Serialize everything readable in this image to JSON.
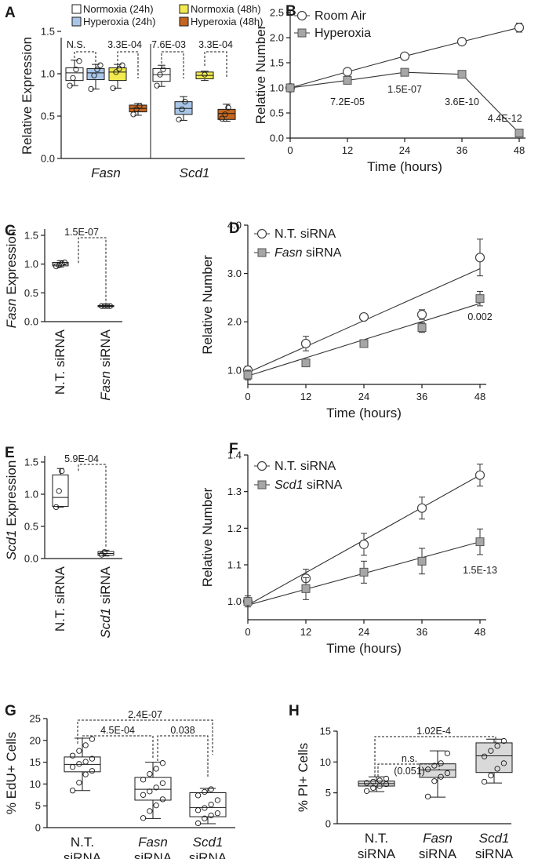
{
  "panels": [
    {
      "id": "A",
      "label": "A",
      "type": "box",
      "ylabel": "Relative Expression",
      "ylim": [
        0,
        1.5
      ],
      "yticks": [
        0,
        0.5,
        1,
        1.5
      ],
      "ytick_labels": [
        "0.0",
        "0.5",
        "1.0",
        "1.5"
      ],
      "groups": [
        "Fasn",
        "Scd1"
      ],
      "groups_italic": true,
      "conditions": [
        {
          "name": "Normoxia (24h)",
          "color": "#ffffff"
        },
        {
          "name": "Normoxia (48h)",
          "color": "#f2ea4e"
        },
        {
          "name": "Hyperoxia (24h)",
          "color": "#a9c6e8"
        },
        {
          "name": "Hyperoxia (48h)",
          "color": "#c4661f"
        }
      ],
      "boxes": [
        {
          "group": 0,
          "cond": 0,
          "q1": 0.92,
          "median": 1.01,
          "q3": 1.07,
          "min": 0.86,
          "max": 1.16,
          "points": [
            0.86,
            0.95,
            1.05,
            1.15
          ]
        },
        {
          "group": 0,
          "cond": 2,
          "q1": 0.93,
          "median": 1.01,
          "q3": 1.06,
          "min": 0.82,
          "max": 1.11,
          "points": [
            0.82,
            0.98,
            1.05,
            1.1
          ]
        },
        {
          "group": 0,
          "cond": 1,
          "q1": 0.92,
          "median": 1.02,
          "q3": 1.07,
          "min": 0.83,
          "max": 1.11,
          "points": [
            0.83,
            1.02,
            1.06,
            1.1
          ]
        },
        {
          "group": 0,
          "cond": 3,
          "q1": 0.55,
          "median": 0.59,
          "q3": 0.63,
          "min": 0.51,
          "max": 0.65,
          "points": [
            0.52,
            0.58,
            0.62
          ]
        },
        {
          "group": 1,
          "cond": 0,
          "q1": 0.91,
          "median": 0.99,
          "q3": 1.06,
          "min": 0.85,
          "max": 1.1,
          "points": [
            0.86,
            0.99,
            1.05
          ]
        },
        {
          "group": 1,
          "cond": 2,
          "q1": 0.52,
          "median": 0.59,
          "q3": 0.67,
          "min": 0.45,
          "max": 0.73,
          "points": [
            0.46,
            0.58,
            0.67
          ]
        },
        {
          "group": 1,
          "cond": 1,
          "q1": 0.94,
          "median": 0.98,
          "q3": 1.02,
          "min": 0.92,
          "max": 1.03,
          "points": [
            0.99
          ]
        },
        {
          "group": 1,
          "cond": 3,
          "q1": 0.46,
          "median": 0.53,
          "q3": 0.58,
          "min": 0.44,
          "max": 0.64,
          "points": [
            0.47,
            0.52,
            0.6
          ]
        }
      ],
      "pvalues": [
        "N.S.",
        "3.3E-04",
        "7.6E-03",
        "3.3E-04"
      ]
    },
    {
      "id": "B",
      "label": "B",
      "type": "line",
      "xlabel": "Time (hours)",
      "ylabel": "Relative Number",
      "xlim": [
        0,
        48
      ],
      "ylim": [
        0,
        2.5
      ],
      "xticks": [
        0,
        12,
        24,
        36,
        48
      ],
      "yticks": [
        0,
        0.5,
        1,
        1.5,
        2,
        2.5
      ],
      "ytick_labels": [
        "0.0",
        "0.5",
        "1.0",
        "1.5",
        "2.0",
        "2.5"
      ],
      "series": [
        {
          "name": "Room Air",
          "marker": "circle",
          "x": [
            0,
            12,
            24,
            36,
            48
          ],
          "y": [
            1.0,
            1.32,
            1.63,
            1.92,
            2.2
          ],
          "err": [
            0.02,
            0.03,
            0.05,
            0.03,
            0.09
          ],
          "fit": false
        },
        {
          "name": "Hyperoxia",
          "marker": "square",
          "x": [
            0,
            12,
            24,
            36,
            48
          ],
          "y": [
            1.0,
            1.15,
            1.31,
            1.27,
            0.1
          ],
          "err": [
            0.02,
            0.03,
            0.03,
            0.05,
            0.02
          ],
          "fit": false
        }
      ],
      "annotations": [
        {
          "text": "7.2E-05",
          "x": 12,
          "y": 0.72
        },
        {
          "text": "1.5E-07",
          "x": 24,
          "y": 0.97
        },
        {
          "text": "3.6E-10",
          "x": 36,
          "y": 0.72
        },
        {
          "text": "4.4E-12",
          "x": 45,
          "y": 0.39
        }
      ]
    },
    {
      "id": "C",
      "label": "C",
      "type": "box2",
      "ylabel": "Fasn Expression",
      "ylabel_italic": "Fasn",
      "ylabel_rest": " Expression",
      "ylim": [
        0,
        1.5
      ],
      "yticks": [
        0,
        0.5,
        1,
        1.5
      ],
      "ytick_labels": [
        "0.0",
        "0.5",
        "1.0",
        "1.5"
      ],
      "categories": [
        {
          "italic": "",
          "rest": "N.T. siRNA"
        },
        {
          "italic": "Fasn",
          "rest": " siRNA"
        }
      ],
      "boxes": [
        {
          "q1": 0.97,
          "median": 1.0,
          "q3": 1.03,
          "min": 0.95,
          "max": 1.06,
          "points": [
            0.96,
            0.98,
            1.01,
            1.03
          ]
        },
        {
          "q1": 0.26,
          "median": 0.27,
          "q3": 0.28,
          "min": 0.26,
          "max": 0.28,
          "points": [
            0.27,
            0.27,
            0.27,
            0.27
          ]
        }
      ],
      "pvalue": "1.5E-07"
    },
    {
      "id": "D",
      "label": "D",
      "type": "line",
      "xlabel": "Time (hours)",
      "ylabel": "Relative Number",
      "xlim": [
        0,
        48
      ],
      "ylim": [
        0.9,
        4.0
      ],
      "xticks": [
        0,
        12,
        24,
        36,
        48
      ],
      "yticks": [
        1,
        2,
        3,
        4
      ],
      "ytick_labels": [
        "1.0",
        "2.0",
        "3.0",
        "4.0"
      ],
      "series": [
        {
          "name": "N.T. siRNA",
          "name_italic": "",
          "marker": "circle",
          "x": [
            0,
            12,
            24,
            36,
            48
          ],
          "y": [
            1.0,
            1.55,
            2.1,
            2.15,
            3.33
          ],
          "err": [
            0.08,
            0.15,
            0.07,
            0.1,
            0.38
          ],
          "fit": [
            0.95,
            3.1
          ]
        },
        {
          "name": "Fasn siRNA",
          "name_italic": "Fasn",
          "marker": "square",
          "x": [
            0,
            12,
            24,
            36,
            48
          ],
          "y": [
            0.9,
            1.15,
            1.55,
            1.88,
            2.48
          ],
          "err": [
            0.1,
            0.06,
            0.07,
            0.1,
            0.15
          ],
          "fit": [
            0.88,
            2.38
          ]
        }
      ],
      "annotations": [
        {
          "text": "0.002",
          "x": 48,
          "y": 2.1
        }
      ]
    },
    {
      "id": "E",
      "label": "E",
      "type": "box2",
      "ylabel": "Scd1 Expression",
      "ylabel_italic": "Scd1",
      "ylabel_rest": " Expression",
      "ylim": [
        0,
        1.5
      ],
      "yticks": [
        0,
        0.5,
        1,
        1.5
      ],
      "ytick_labels": [
        "0.0",
        "0.5",
        "1.0",
        "1.5"
      ],
      "categories": [
        {
          "italic": "",
          "rest": "N.T. siRNA"
        },
        {
          "italic": "Scd1",
          "rest": " siRNA"
        }
      ],
      "boxes": [
        {
          "q1": 0.81,
          "median": 0.95,
          "q3": 1.3,
          "min": 0.8,
          "max": 1.4,
          "points": [
            0.8,
            1.05,
            1.36
          ]
        },
        {
          "q1": 0.05,
          "median": 0.08,
          "q3": 0.11,
          "min": 0.04,
          "max": 0.13,
          "points": [
            0.06,
            0.1
          ]
        }
      ],
      "pvalue": "5.9E-04"
    },
    {
      "id": "F",
      "label": "F",
      "type": "line",
      "xlabel": "Time (hours)",
      "ylabel": "Relative Number",
      "xlim": [
        0,
        48
      ],
      "ylim": [
        0.98,
        1.4
      ],
      "xticks": [
        0,
        12,
        24,
        36,
        48
      ],
      "yticks": [
        1.0,
        1.1,
        1.2,
        1.3,
        1.4
      ],
      "ytick_labels": [
        "1.0",
        "1.1",
        "1.2",
        "1.3",
        "1.4"
      ],
      "series": [
        {
          "name": "N.T. siRNA",
          "name_italic": "",
          "marker": "circle",
          "x": [
            0,
            12,
            24,
            36,
            48
          ],
          "y": [
            1.0,
            1.063,
            1.156,
            1.255,
            1.345
          ],
          "err": [
            0.01,
            0.025,
            0.03,
            0.03,
            0.03
          ],
          "fit": [
            0.99,
            1.345
          ]
        },
        {
          "name": "Scd1 siRNA",
          "name_italic": "Scd1",
          "marker": "square",
          "x": [
            0,
            12,
            24,
            36,
            48
          ],
          "y": [
            1.0,
            1.035,
            1.08,
            1.11,
            1.163
          ],
          "err": [
            0.015,
            0.03,
            0.03,
            0.035,
            0.035
          ],
          "fit": [
            0.99,
            1.163
          ]
        }
      ],
      "annotations": [
        {
          "text": "1.5E-13",
          "x": 48,
          "y": 1.085
        }
      ]
    },
    {
      "id": "G",
      "label": "G",
      "type": "box3",
      "ylabel": "% EdU+ Cells",
      "ylim": [
        0,
        25
      ],
      "yticks": [
        0,
        5,
        10,
        15,
        20,
        25
      ],
      "ytick_labels": [
        "0",
        "5",
        "10",
        "15",
        "20",
        "25"
      ],
      "categories": [
        {
          "italic": "",
          "line1": "N.T.",
          "line2": "siRNA"
        },
        {
          "italic": "Fasn",
          "line1": "Fasn",
          "line2": "siRNA"
        },
        {
          "italic": "Scd1",
          "line1": "Scd1",
          "line2": "siRNA"
        }
      ],
      "box_fill": "#ffffff",
      "boxes": [
        {
          "q1": 12.8,
          "median": 14.5,
          "q3": 16.2,
          "min": 8.5,
          "max": 20.5,
          "points": [
            8.5,
            10.3,
            12.2,
            13.0,
            13.9,
            14.6,
            15.1,
            15.8,
            16.5,
            17.6,
            18.9,
            20.3
          ]
        },
        {
          "q1": 6.3,
          "median": 8.8,
          "q3": 11.5,
          "min": 2.1,
          "max": 15.0,
          "points": [
            2.2,
            3.8,
            5.1,
            6.5,
            7.5,
            8.3,
            9.2,
            10.2,
            11.0,
            12.3,
            13.5,
            14.8
          ]
        },
        {
          "q1": 2.5,
          "median": 4.6,
          "q3": 8.0,
          "min": 0.9,
          "max": 9.0,
          "points": [
            1.0,
            2.1,
            2.8,
            3.3,
            4.0,
            4.5,
            5.3,
            6.3,
            7.4,
            8.2,
            8.8
          ]
        }
      ],
      "comparisons": [
        {
          "from": 0,
          "to": 1,
          "text": "4.5E-04"
        },
        {
          "from": 1,
          "to": 2,
          "text": "0.038"
        },
        {
          "from": 0,
          "to": 2,
          "text": "2.4E-07"
        }
      ]
    },
    {
      "id": "H",
      "label": "H",
      "type": "box3",
      "ylabel": "% PI+ Cells",
      "ylim": [
        0,
        15
      ],
      "yticks": [
        0,
        5,
        10,
        15
      ],
      "ytick_labels": [
        "0",
        "5",
        "10",
        "15"
      ],
      "categories": [
        {
          "italic": "",
          "line1": "N.T.",
          "line2": "siRNA"
        },
        {
          "italic": "Fasn",
          "line1": "Fasn",
          "line2": "siRNA"
        },
        {
          "italic": "Scd1",
          "line1": "Scd1",
          "line2": "siRNA"
        }
      ],
      "box_fill": "#d9d9d9",
      "boxes": [
        {
          "q1": 6.1,
          "median": 6.5,
          "q3": 6.9,
          "min": 5.2,
          "max": 7.6,
          "points": [
            5.3,
            5.8,
            6.1,
            6.4,
            6.6,
            6.8,
            7.0,
            7.3
          ]
        },
        {
          "q1": 7.5,
          "median": 8.7,
          "q3": 9.7,
          "min": 4.3,
          "max": 11.8,
          "points": [
            4.4,
            6.9,
            7.6,
            8.2,
            8.8,
            9.4,
            9.8,
            11.4
          ]
        },
        {
          "q1": 8.3,
          "median": 11.0,
          "q3": 13.1,
          "min": 6.6,
          "max": 13.7,
          "points": [
            6.8,
            7.8,
            8.9,
            9.8,
            10.9,
            11.8,
            12.6,
            13.4
          ]
        }
      ],
      "comparisons": [
        {
          "from": 0,
          "to": 1,
          "text": "n.s.",
          "text2": "(0.051)"
        },
        {
          "from": 0,
          "to": 2,
          "text": "1.02E-4"
        }
      ]
    }
  ]
}
